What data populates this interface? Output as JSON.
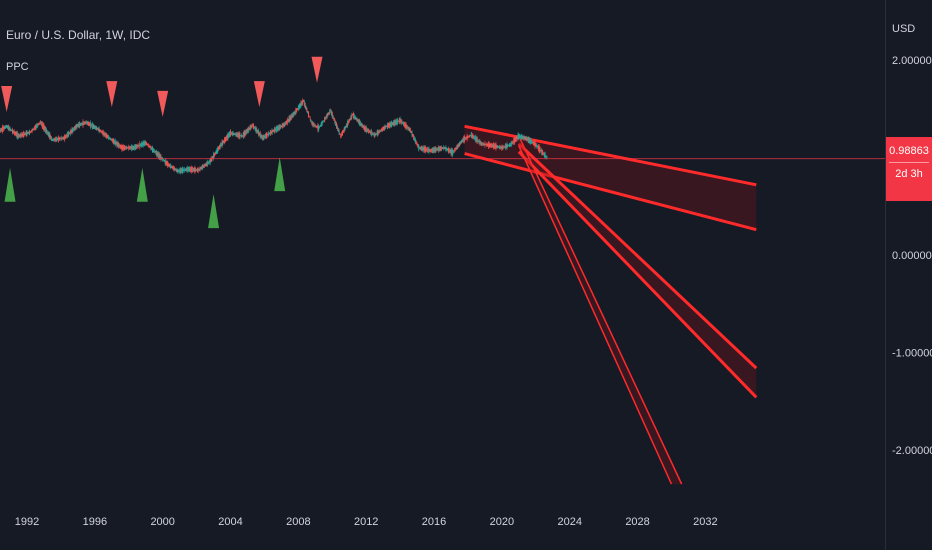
{
  "header": {
    "symbol_title": "Euro / U.S. Dollar, 1W, IDC",
    "indicator_name": "PPC",
    "currency": "USD"
  },
  "price_label": {
    "value": "0.98863",
    "countdown": "2d 3h"
  },
  "colors": {
    "background": "#161a25",
    "up_candle": "#26a69a",
    "down_candle": "#ef5350",
    "channel_line": "#ff2a2a",
    "sell_marker": "#f05a5a",
    "buy_marker": "#43a047",
    "price_line": "#f23645",
    "axis_text": "#d1d4dc"
  },
  "chart_data": {
    "type": "candlestick",
    "y_axis": {
      "ticks": [
        2.0,
        0.0,
        -1.0,
        -2.0
      ],
      "tick_labels": [
        "2.00000",
        "0.00000",
        "-1.00000",
        "-2.00000"
      ],
      "range": [
        -2.35,
        2.2
      ]
    },
    "x_axis": {
      "ticks": [
        1992,
        1996,
        2000,
        2004,
        2008,
        2012,
        2016,
        2020,
        2024,
        2028,
        2032
      ],
      "range": [
        1990.2,
        2035.0
      ]
    },
    "last_price": 0.98863,
    "price_series": [
      [
        1990.2,
        1.25
      ],
      [
        1990.8,
        1.32
      ],
      [
        1991.5,
        1.22
      ],
      [
        1992.2,
        1.26
      ],
      [
        1992.8,
        1.36
      ],
      [
        1993.5,
        1.18
      ],
      [
        1994.2,
        1.2
      ],
      [
        1995.0,
        1.33
      ],
      [
        1995.5,
        1.36
      ],
      [
        1996.2,
        1.29
      ],
      [
        1997.0,
        1.18
      ],
      [
        1997.6,
        1.1
      ],
      [
        1998.3,
        1.1
      ],
      [
        1999.0,
        1.15
      ],
      [
        1999.6,
        1.05
      ],
      [
        2000.3,
        0.93
      ],
      [
        2000.9,
        0.86
      ],
      [
        2001.5,
        0.88
      ],
      [
        2002.1,
        0.87
      ],
      [
        2002.8,
        0.96
      ],
      [
        2003.4,
        1.12
      ],
      [
        2004.0,
        1.25
      ],
      [
        2004.7,
        1.22
      ],
      [
        2005.3,
        1.33
      ],
      [
        2005.9,
        1.2
      ],
      [
        2006.5,
        1.27
      ],
      [
        2007.2,
        1.34
      ],
      [
        2007.8,
        1.46
      ],
      [
        2008.3,
        1.58
      ],
      [
        2008.8,
        1.35
      ],
      [
        2009.2,
        1.3
      ],
      [
        2009.9,
        1.48
      ],
      [
        2010.5,
        1.22
      ],
      [
        2011.2,
        1.44
      ],
      [
        2011.9,
        1.3
      ],
      [
        2012.5,
        1.23
      ],
      [
        2013.2,
        1.32
      ],
      [
        2014.0,
        1.38
      ],
      [
        2014.6,
        1.28
      ],
      [
        2015.1,
        1.1
      ],
      [
        2015.8,
        1.07
      ],
      [
        2016.6,
        1.1
      ],
      [
        2017.1,
        1.05
      ],
      [
        2017.7,
        1.18
      ],
      [
        2018.2,
        1.23
      ],
      [
        2018.8,
        1.14
      ],
      [
        2019.5,
        1.12
      ],
      [
        2020.0,
        1.1
      ],
      [
        2020.5,
        1.13
      ],
      [
        2021.0,
        1.22
      ],
      [
        2021.5,
        1.19
      ],
      [
        2022.0,
        1.13
      ],
      [
        2022.4,
        1.05
      ],
      [
        2022.7,
        0.99
      ]
    ],
    "buy_signals": [
      [
        1991.0,
        0.72
      ],
      [
        1998.8,
        0.72
      ],
      [
        2003.0,
        0.45
      ],
      [
        2006.9,
        0.83
      ]
    ],
    "sell_signals": [
      [
        1990.8,
        1.6
      ],
      [
        1997.0,
        1.65
      ],
      [
        2000.0,
        1.55
      ],
      [
        2005.7,
        1.65
      ],
      [
        2009.1,
        1.9
      ]
    ],
    "channels": [
      {
        "upper": [
          [
            2017.8,
            1.32
          ],
          [
            2035.0,
            0.72
          ]
        ],
        "lower": [
          [
            2017.8,
            1.04
          ],
          [
            2035.0,
            0.26
          ]
        ]
      },
      {
        "upper": [
          [
            2021.0,
            1.14
          ],
          [
            2035.0,
            -1.16
          ]
        ],
        "lower": [
          [
            2021.0,
            1.06
          ],
          [
            2035.0,
            -1.46
          ]
        ]
      },
      {
        "upper": [
          [
            2021.0,
            1.22
          ],
          [
            2030.6,
            -2.35
          ]
        ],
        "lower": [
          [
            2021.0,
            1.12
          ],
          [
            2030.0,
            -2.35
          ]
        ]
      }
    ]
  }
}
